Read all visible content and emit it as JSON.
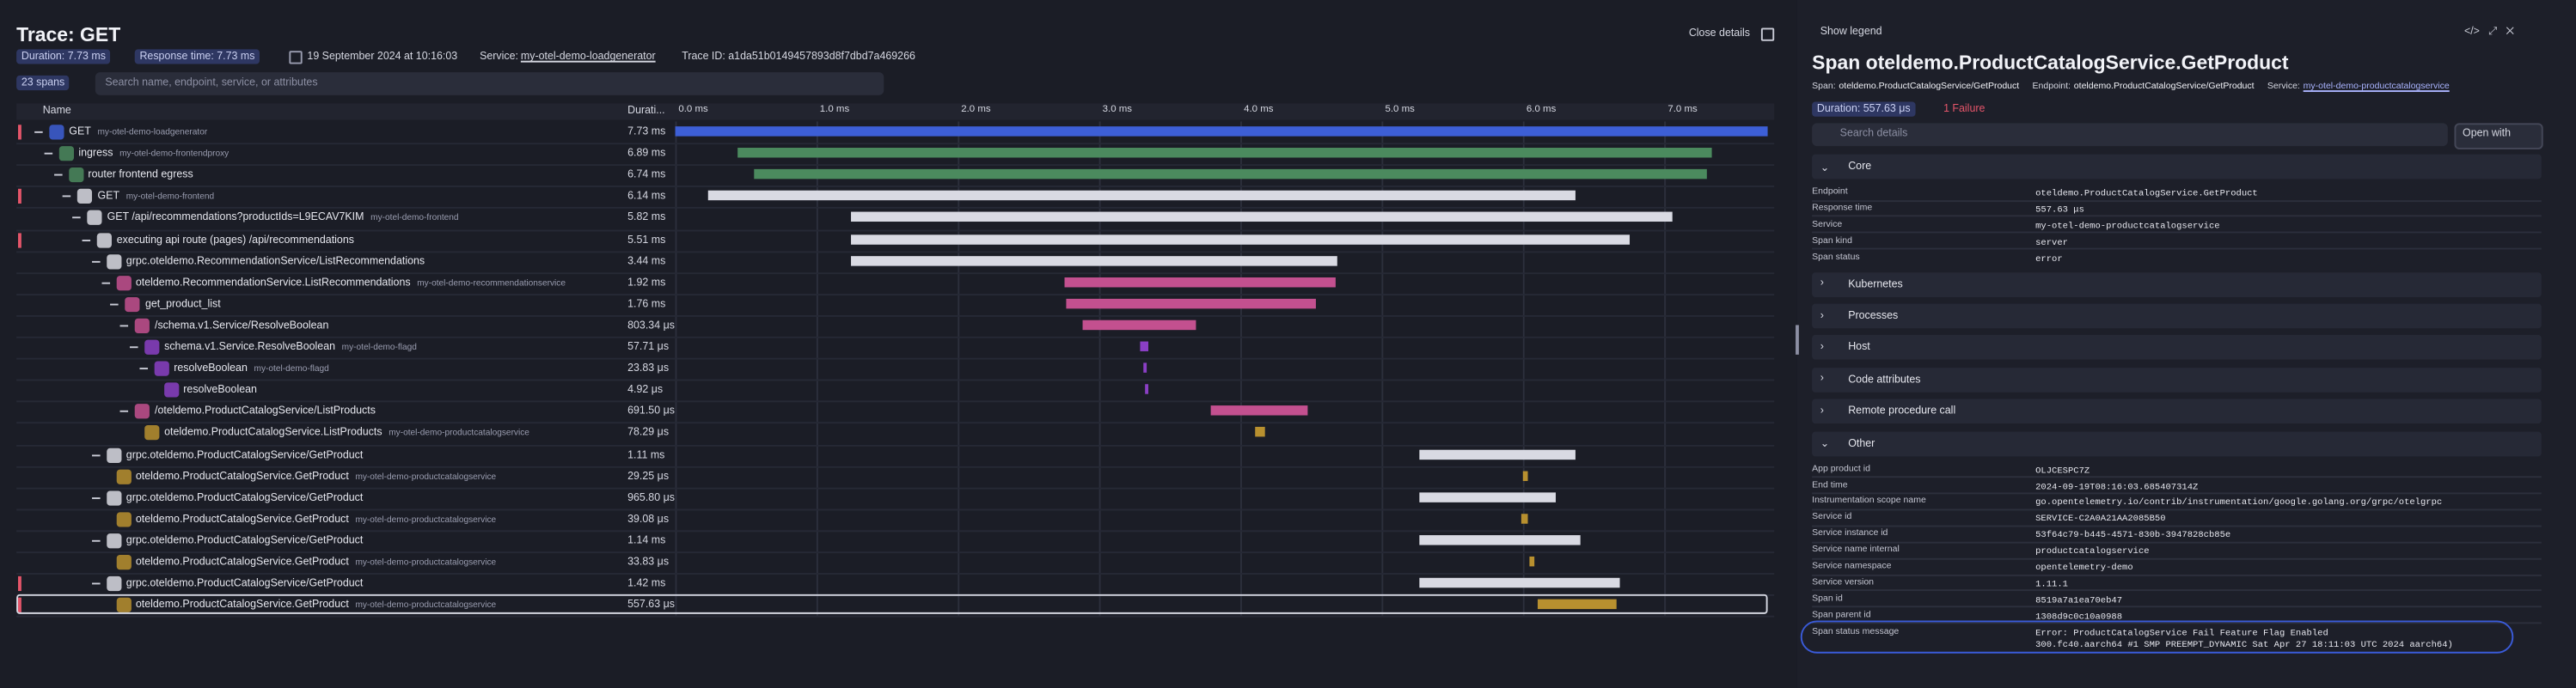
{
  "header": {
    "title": "Trace: GET",
    "close": "Close details",
    "duration": "Duration: 7.73 ms",
    "response_time": "Response time: 7.73 ms",
    "date": "19 September 2024 at 10:16:03",
    "service_label": "Service:",
    "service": "my-otel-demo-loadgenerator",
    "trace_id": "Trace ID: a1da51b0149457893d8f7dbd7a469266",
    "span_count": "23 spans",
    "search_placeholder": "Search name, endpoint, service, or attributes"
  },
  "table": {
    "columns": [
      "Name",
      "Durati..."
    ],
    "timeline": {
      "xlim": [
        0,
        7.73
      ],
      "xticks": [
        {
          "value": 0,
          "label": "0.0 ms"
        },
        {
          "value": 1,
          "label": "1.0 ms"
        },
        {
          "value": 2,
          "label": "2.0 ms"
        },
        {
          "value": 3,
          "label": "3.0 ms"
        },
        {
          "value": 4,
          "label": "4.0 ms"
        },
        {
          "value": 5,
          "label": "5.0 ms"
        },
        {
          "value": 6,
          "label": "6.0 ms"
        },
        {
          "value": 7,
          "label": "7.0 ms"
        }
      ]
    },
    "spans": [
      {
        "name": "GET",
        "service": "my-otel-demo-loadgenerator",
        "duration": "7.73 ms",
        "depth": 0,
        "error": true,
        "color": "#3d5fd6",
        "start_ms": 0,
        "length_ms": 7.73
      },
      {
        "name": "ingress",
        "service": "my-otel-demo-frontendproxy",
        "duration": "6.89 ms",
        "depth": 1,
        "error": false,
        "color": "#4b8a5e",
        "start_ms": 0.44,
        "length_ms": 6.89
      },
      {
        "name": "router frontend egress",
        "duration": "6.74 ms",
        "depth": 2,
        "error": false,
        "color": "#4b8a5e",
        "start_ms": 0.56,
        "length_ms": 6.74
      },
      {
        "name": "GET",
        "service": "my-otel-demo-frontend",
        "duration": "6.14 ms",
        "depth": 3,
        "error": true,
        "color": "#d9dae3",
        "start_ms": 0.23,
        "length_ms": 6.14
      },
      {
        "name": "GET /api/recommendations?productIds=L9ECAV7KIM",
        "service": "my-otel-demo-frontend",
        "duration": "5.82 ms",
        "depth": 4,
        "error": false,
        "color": "#d9dae3",
        "start_ms": 1.24,
        "length_ms": 5.82
      },
      {
        "name": "executing api route (pages) /api/recommendations",
        "duration": "5.51 ms",
        "depth": 5,
        "error": true,
        "color": "#d9dae3",
        "start_ms": 1.24,
        "length_ms": 5.51
      },
      {
        "name": "grpc.oteldemo.RecommendationService/ListRecommendations",
        "duration": "3.44 ms",
        "depth": 6,
        "error": false,
        "color": "#d9dae3",
        "start_ms": 1.24,
        "length_ms": 3.44
      },
      {
        "name": "oteldemo.RecommendationService.ListRecommendations",
        "service": "my-otel-demo-recommendationservice",
        "duration": "1.92 ms",
        "depth": 7,
        "error": false,
        "color": "#c3508f",
        "start_ms": 2.75,
        "length_ms": 1.92
      },
      {
        "name": "get_product_list",
        "duration": "1.76 ms",
        "depth": 8,
        "error": false,
        "color": "#c3508f",
        "start_ms": 2.77,
        "length_ms": 1.76
      },
      {
        "name": "/schema.v1.Service/ResolveBoolean",
        "duration": "803.34 μs",
        "depth": 9,
        "error": false,
        "color": "#c3508f",
        "start_ms": 2.88,
        "length_ms": 0.8
      },
      {
        "name": "schema.v1.Service.ResolveBoolean",
        "service": "my-otel-demo-flagd",
        "duration": "57.71 μs",
        "depth": 10,
        "error": false,
        "color": "#8a3fc4",
        "start_ms": 3.29,
        "length_ms": 0.058
      },
      {
        "name": "resolveBoolean",
        "service": "my-otel-demo-flagd",
        "duration": "23.83 μs",
        "depth": 11,
        "error": false,
        "color": "#8a3fc4",
        "start_ms": 3.31,
        "length_ms": 0.024
      },
      {
        "name": "resolveBoolean",
        "duration": "4.92 μs",
        "depth": 12,
        "error": false,
        "color": "#8a3fc4",
        "start_ms": 3.32,
        "length_ms": 0.005
      },
      {
        "name": "/oteldemo.ProductCatalogService/ListProducts",
        "duration": "691.50 μs",
        "depth": 9,
        "error": false,
        "color": "#c3508f",
        "start_ms": 3.79,
        "length_ms": 0.69
      },
      {
        "name": "oteldemo.ProductCatalogService.ListProducts",
        "service": "my-otel-demo-productcatalogservice",
        "duration": "78.29 μs",
        "depth": 10,
        "error": false,
        "color": "#b8902f",
        "start_ms": 4.1,
        "length_ms": 0.078
      },
      {
        "name": "grpc.oteldemo.ProductCatalogService/GetProduct",
        "duration": "1.11 ms",
        "depth": 6,
        "error": false,
        "color": "#d9dae3",
        "start_ms": 5.26,
        "length_ms": 1.11
      },
      {
        "name": "oteldemo.ProductCatalogService.GetProduct",
        "service": "my-otel-demo-productcatalogservice",
        "duration": "29.25 μs",
        "depth": 7,
        "error": false,
        "color": "#b8902f",
        "start_ms": 6.0,
        "length_ms": 0.029
      },
      {
        "name": "grpc.oteldemo.ProductCatalogService/GetProduct",
        "duration": "965.80 μs",
        "depth": 6,
        "error": false,
        "color": "#d9dae3",
        "start_ms": 5.26,
        "length_ms": 0.97
      },
      {
        "name": "oteldemo.ProductCatalogService.GetProduct",
        "service": "my-otel-demo-productcatalogservice",
        "duration": "39.08 μs",
        "depth": 7,
        "error": false,
        "color": "#b8902f",
        "start_ms": 5.99,
        "length_ms": 0.039
      },
      {
        "name": "grpc.oteldemo.ProductCatalogService/GetProduct",
        "duration": "1.14 ms",
        "depth": 6,
        "error": false,
        "color": "#d9dae3",
        "start_ms": 5.26,
        "length_ms": 1.14
      },
      {
        "name": "oteldemo.ProductCatalogService.GetProduct",
        "service": "my-otel-demo-productcatalogservice",
        "duration": "33.83 μs",
        "depth": 7,
        "error": false,
        "color": "#b8902f",
        "start_ms": 6.04,
        "length_ms": 0.034
      },
      {
        "name": "grpc.oteldemo.ProductCatalogService/GetProduct",
        "duration": "1.42 ms",
        "depth": 6,
        "error": true,
        "color": "#d9dae3",
        "start_ms": 5.26,
        "length_ms": 1.42
      },
      {
        "name": "oteldemo.ProductCatalogService.GetProduct",
        "service": "my-otel-demo-productcatalogservice",
        "duration": "557.63 μs",
        "depth": 7,
        "error": true,
        "color": "#b8902f",
        "start_ms": 6.1,
        "length_ms": 0.558
      }
    ]
  },
  "details": {
    "show_legend": "Show legend",
    "title": "Span oteldemo.ProductCatalogService.GetProduct",
    "meta": [
      {
        "label": "Span:",
        "value": "oteldemo.ProductCatalogService/GetProduct"
      },
      {
        "label": "Endpoint:",
        "value": "oteldemo.ProductCatalogService/GetProduct"
      },
      {
        "label": "Service:",
        "value": "my-otel-demo-productcatalogservice"
      }
    ],
    "duration": "Duration: 557.63 μs",
    "failures": "1 Failure",
    "search_placeholder": "Search details",
    "open_with": "Open with",
    "sections": [
      {
        "title": "Core",
        "open": true,
        "rows": [
          [
            "Endpoint",
            "oteldemo.ProductCatalogService.GetProduct"
          ],
          [
            "Response time",
            "557.63 μs"
          ],
          [
            "Service",
            "my-otel-demo-productcatalogservice"
          ],
          [
            "Span kind",
            "server"
          ],
          [
            "Span status",
            "error"
          ]
        ]
      },
      {
        "title": "Kubernetes",
        "open": false
      },
      {
        "title": "Processes",
        "open": false
      },
      {
        "title": "Host",
        "open": false
      },
      {
        "title": "Code attributes",
        "open": false
      },
      {
        "title": "Remote procedure call",
        "open": false
      },
      {
        "title": "Other",
        "open": true,
        "rows": [
          [
            "App product id",
            "OLJCESPC7Z"
          ],
          [
            "End time",
            "2024-09-19T08:16:03.685407314Z"
          ],
          [
            "Instrumentation scope name",
            "go.opentelemetry.io/contrib/instrumentation/google.golang.org/grpc/otelgrpc"
          ],
          [
            "Service id",
            "SERVICE-C2A0A21AA2085B50"
          ],
          [
            "Service instance id",
            "53f64c79-b445-4571-830b-3947828cb85e"
          ],
          [
            "Service name internal",
            "productcatalogservice"
          ],
          [
            "Service namespace",
            "opentelemetry-demo"
          ],
          [
            "Service version",
            "1.11.1"
          ],
          [
            "Span id",
            "8519a7a1ea70eb47"
          ],
          [
            "Span parent id",
            "1308d9c0c10a0988"
          ],
          [
            "Span status message",
            "Error: ProductCatalogService Fail Feature Flag Enabled",
            "300.fc40.aarch64 #1 SMP PREEMPT_DYNAMIC Sat Apr 27 18:11:03 UTC 2024 aarch64)"
          ]
        ]
      }
    ]
  }
}
